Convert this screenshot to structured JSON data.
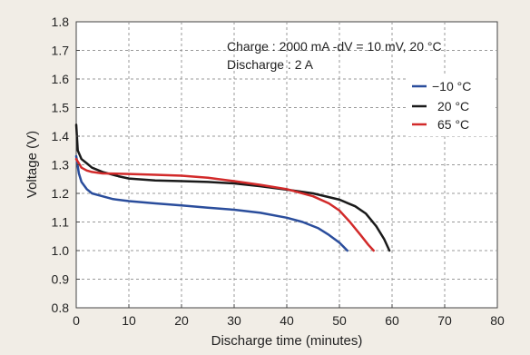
{
  "chart_data": {
    "type": "line",
    "title": "",
    "xlabel": "Discharge time (minutes)",
    "ylabel": "Voltage (V)",
    "xlim": [
      0,
      80
    ],
    "ylim": [
      0.8,
      1.8
    ],
    "x_ticks": [
      "0",
      "10",
      "20",
      "30",
      "40",
      "50",
      "60",
      "70",
      "80"
    ],
    "y_ticks": [
      "0.8",
      "0.9",
      "1.0",
      "1.1",
      "1.2",
      "1.3",
      "1.4",
      "1.5",
      "1.6",
      "1.7",
      "1.8"
    ],
    "grid": true,
    "legend_position": "top-right",
    "annotations": [
      "Charge : 2000 mA -dV = 10 mV, 20 °C",
      "Discharge : 2 A"
    ],
    "series": [
      {
        "name": "−10 °C",
        "color": "#2a4d9c",
        "x": [
          0,
          0.5,
          1,
          2,
          3,
          5,
          7,
          10,
          15,
          20,
          25,
          30,
          35,
          40,
          43,
          46,
          48,
          50,
          51.5
        ],
        "y": [
          1.33,
          1.27,
          1.24,
          1.215,
          1.2,
          1.19,
          1.18,
          1.173,
          1.165,
          1.158,
          1.15,
          1.143,
          1.132,
          1.115,
          1.1,
          1.078,
          1.055,
          1.028,
          1.0
        ]
      },
      {
        "name": "20 °C",
        "color": "#1a1a1a",
        "x": [
          0,
          0.3,
          1,
          2,
          3,
          5,
          8,
          10,
          15,
          20,
          25,
          30,
          35,
          40,
          45,
          50,
          53,
          55,
          57,
          58.5,
          59.5
        ],
        "y": [
          1.44,
          1.35,
          1.32,
          1.305,
          1.29,
          1.275,
          1.26,
          1.252,
          1.245,
          1.243,
          1.24,
          1.235,
          1.225,
          1.213,
          1.2,
          1.178,
          1.155,
          1.13,
          1.085,
          1.04,
          1.0
        ]
      },
      {
        "name": "65 °C",
        "color": "#d22a2a",
        "x": [
          0,
          0.5,
          1,
          2,
          3,
          5,
          10,
          15,
          20,
          25,
          30,
          35,
          40,
          45,
          48,
          50,
          52,
          54,
          55.5,
          56.5
        ],
        "y": [
          1.32,
          1.305,
          1.29,
          1.28,
          1.275,
          1.27,
          1.268,
          1.265,
          1.262,
          1.255,
          1.243,
          1.23,
          1.215,
          1.19,
          1.165,
          1.14,
          1.1,
          1.055,
          1.02,
          1.0
        ]
      }
    ]
  }
}
